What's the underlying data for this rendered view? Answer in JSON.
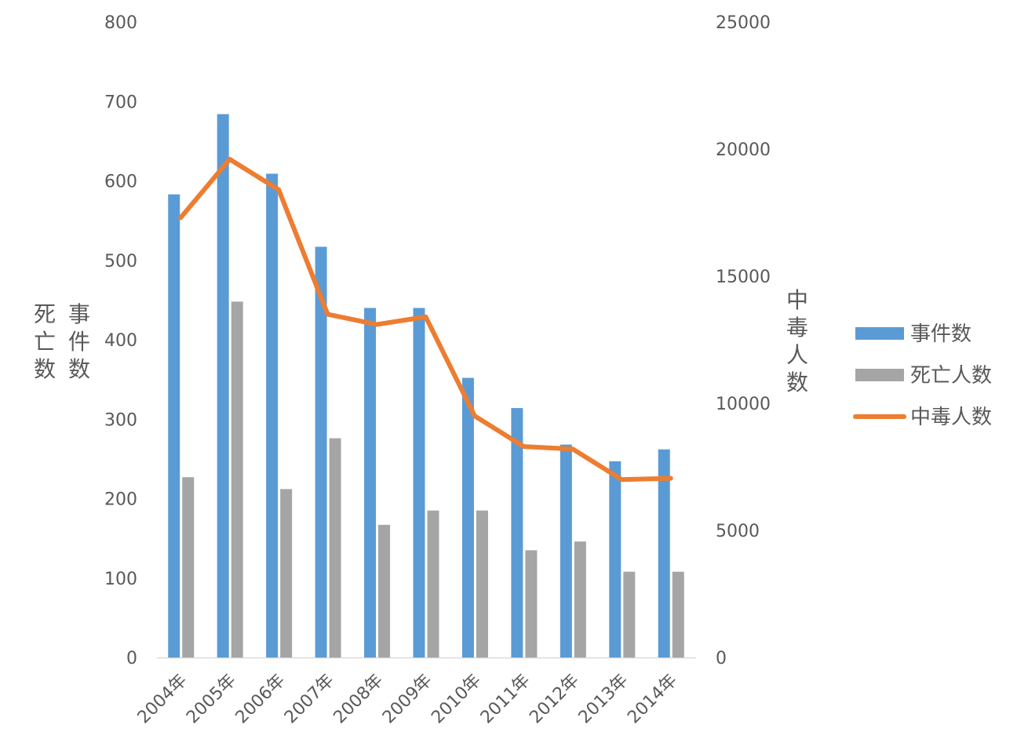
{
  "chart_data": {
    "type": "bar",
    "categories": [
      "2004年",
      "2005年",
      "2006年",
      "2007年",
      "2008年",
      "2009年",
      "2010年",
      "2011年",
      "2012年",
      "2013年",
      "2014年"
    ],
    "series": [
      {
        "name": "事件数",
        "type": "bar",
        "axis": "left",
        "color": "#5b9bd5",
        "values": [
          583,
          684,
          609,
          517,
          440,
          440,
          352,
          314,
          268,
          247,
          262
        ]
      },
      {
        "name": "死亡人数",
        "type": "bar",
        "axis": "left",
        "color": "#a5a5a5",
        "values": [
          227,
          448,
          212,
          276,
          167,
          185,
          185,
          135,
          146,
          108,
          108
        ]
      },
      {
        "name": "中毒人数",
        "type": "line",
        "axis": "right",
        "color": "#ed7d31",
        "values": [
          17300,
          19600,
          18400,
          13500,
          13100,
          13400,
          9500,
          8300,
          8200,
          7000,
          7050
        ]
      }
    ],
    "yleft": {
      "ticks": [
        "0",
        "100",
        "200",
        "300",
        "400",
        "500",
        "600",
        "700",
        "800"
      ],
      "ylim": [
        0,
        800
      ],
      "title_lines": [
        "死亡数",
        "事件数"
      ]
    },
    "yright": {
      "ticks": [
        "0",
        "5000",
        "10000",
        "15000",
        "20000",
        "25000"
      ],
      "ylim": [
        0,
        25000
      ],
      "title": "中毒人数"
    },
    "legend": {
      "position": "right",
      "entries": [
        "事件数",
        "死亡人数",
        "中毒人数"
      ]
    }
  }
}
